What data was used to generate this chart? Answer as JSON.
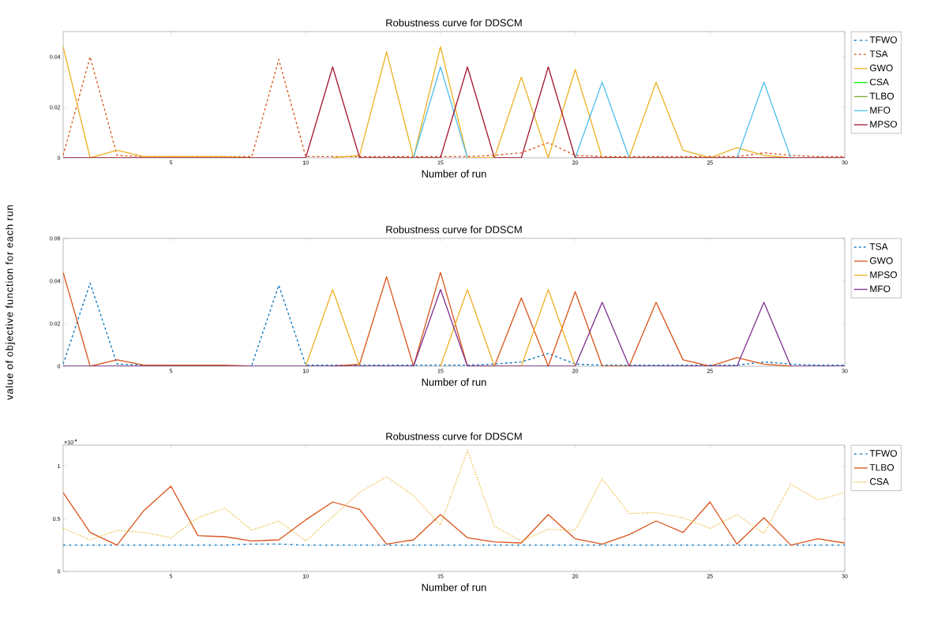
{
  "chart_data": [
    {
      "type": "line",
      "title": "Robustness curve for DDSCM",
      "xlabel": "Number of run",
      "x": [
        1,
        2,
        3,
        4,
        5,
        6,
        7,
        8,
        9,
        10,
        11,
        12,
        13,
        14,
        15,
        16,
        17,
        18,
        19,
        20,
        21,
        22,
        23,
        24,
        25,
        26,
        27,
        28,
        29,
        30
      ],
      "xlim": [
        1,
        30
      ],
      "xticks": [
        5,
        10,
        15,
        20,
        25,
        30
      ],
      "ylim": [
        0,
        0.05
      ],
      "yticks": [
        0,
        0.02,
        0.04
      ],
      "grid": false,
      "legend": "right",
      "marker": "none",
      "series": [
        {
          "name": "TFWO",
          "color": "#0072bd",
          "line_style": "dashdot",
          "values": [
            null,
            null,
            null,
            null,
            null,
            null,
            null,
            null,
            null,
            null,
            null,
            null,
            null,
            null,
            null,
            null,
            null,
            null,
            null,
            null,
            null,
            null,
            null,
            null,
            null,
            null,
            null,
            null,
            null,
            null
          ]
        },
        {
          "name": "TSA",
          "color": "#d95319",
          "line_style": "dashed",
          "values": [
            0.001,
            0.04,
            0.001,
            0.0005,
            0.0005,
            0.0005,
            0.0005,
            0.0005,
            0.039,
            0.0005,
            0.0005,
            0.0005,
            0.0005,
            0.0005,
            0.0005,
            0.0005,
            0.001,
            0.002,
            0.006,
            0.001,
            0.0005,
            0.0005,
            0.0005,
            0.0005,
            0.0005,
            0.0005,
            0.002,
            0.001,
            0.0005,
            0.0005
          ]
        },
        {
          "name": "GWO",
          "color": "#edb120",
          "line_style": "solid",
          "values": [
            0.044,
            0,
            0.003,
            0.0005,
            0.0005,
            0.0005,
            0.0005,
            0,
            null,
            null,
            0,
            0.001,
            0.042,
            0,
            0.044,
            0,
            0,
            0.032,
            0,
            0.035,
            0,
            0,
            0.03,
            0.003,
            0,
            0.004,
            0.001,
            0,
            null,
            null
          ]
        },
        {
          "name": "CSA",
          "color": "#00ff00",
          "line_style": "solid",
          "values": [
            null,
            null,
            null,
            null,
            null,
            null,
            null,
            null,
            null,
            null,
            null,
            null,
            null,
            null,
            null,
            null,
            null,
            null,
            null,
            null,
            null,
            null,
            null,
            null,
            null,
            null,
            null,
            null,
            null,
            null
          ]
        },
        {
          "name": "TLBO",
          "color": "#77ac30",
          "line_style": "solid",
          "values": [
            null,
            null,
            null,
            null,
            null,
            null,
            null,
            null,
            null,
            null,
            null,
            null,
            null,
            null,
            null,
            null,
            null,
            null,
            null,
            null,
            null,
            null,
            null,
            null,
            null,
            null,
            null,
            null,
            null,
            null
          ]
        },
        {
          "name": "MFO",
          "color": "#4dbeee",
          "line_style": "solid",
          "values": [
            null,
            null,
            null,
            null,
            null,
            null,
            null,
            null,
            null,
            null,
            null,
            null,
            null,
            0,
            0.036,
            0,
            null,
            null,
            null,
            0,
            0.03,
            0,
            null,
            null,
            null,
            0,
            0.03,
            0,
            null,
            null
          ]
        },
        {
          "name": "MPSO",
          "color": "#a2142f",
          "line_style": "solid",
          "values": [
            0,
            0,
            0,
            0,
            0,
            0,
            0,
            0,
            0,
            0,
            0.036,
            0,
            0,
            0,
            0,
            0.036,
            0,
            0,
            0.036,
            0,
            0,
            0,
            0,
            0,
            0,
            0,
            0,
            0,
            0,
            0
          ]
        }
      ]
    },
    {
      "type": "line",
      "title": "Robustness curve for DDSCM",
      "xlabel": "Number of run",
      "ylabel": "value of objective function for each run",
      "x": [
        1,
        2,
        3,
        4,
        5,
        6,
        7,
        8,
        9,
        10,
        11,
        12,
        13,
        14,
        15,
        16,
        17,
        18,
        19,
        20,
        21,
        22,
        23,
        24,
        25,
        26,
        27,
        28,
        29,
        30
      ],
      "xlim": [
        1,
        30
      ],
      "xticks": [
        5,
        10,
        15,
        20,
        25,
        30
      ],
      "ylim": [
        0,
        0.06
      ],
      "yticks": [
        0,
        0.02,
        0.04,
        0.06
      ],
      "grid": false,
      "legend": "right",
      "marker": "none",
      "series": [
        {
          "name": "TSA",
          "color": "#0072bd",
          "line_style": "dashed",
          "values": [
            0.001,
            0.039,
            0.001,
            0.0005,
            0.0005,
            null,
            null,
            0.0005,
            0.038,
            0.0005,
            0.0005,
            0.0005,
            0.0005,
            0.0005,
            0.0005,
            0.0005,
            0.001,
            0.002,
            0.006,
            0.001,
            0.0005,
            0.0005,
            0.0005,
            0.0005,
            0.0005,
            0.0005,
            0.002,
            0.001,
            0.0005,
            0.0005
          ]
        },
        {
          "name": "GWO",
          "color": "#d95319",
          "line_style": "solid",
          "values": [
            0.044,
            0,
            0.003,
            0.0005,
            0.0005,
            0.0005,
            0.0005,
            0,
            null,
            null,
            0,
            0.001,
            0.042,
            0,
            0.044,
            0,
            0,
            0.032,
            0,
            0.035,
            0,
            0,
            0.03,
            0.003,
            0,
            0.004,
            0.001,
            0,
            null,
            null
          ]
        },
        {
          "name": "MPSO",
          "color": "#edb120",
          "line_style": "solid",
          "values": [
            null,
            null,
            null,
            null,
            null,
            null,
            null,
            null,
            null,
            0,
            0.036,
            0,
            null,
            null,
            0,
            0.036,
            0,
            0,
            0.036,
            0,
            null,
            null,
            null,
            null,
            null,
            null,
            null,
            null,
            null,
            null
          ]
        },
        {
          "name": "MFO",
          "color": "#7e2f8e",
          "line_style": "solid",
          "values": [
            0,
            0,
            0,
            0,
            0,
            0,
            0,
            0,
            0,
            0,
            0,
            0,
            0,
            0,
            0.036,
            0,
            0,
            0,
            0,
            0,
            0.03,
            0,
            0,
            0,
            0,
            0,
            0.03,
            0,
            0,
            0
          ]
        }
      ]
    },
    {
      "type": "line",
      "title": "Robustness curve for DDSCM",
      "xlabel": "Number of run",
      "annotations": [
        "×10$^{-4}$"
      ],
      "x": [
        1,
        2,
        3,
        4,
        5,
        6,
        7,
        8,
        9,
        10,
        11,
        12,
        13,
        14,
        15,
        16,
        17,
        18,
        19,
        20,
        21,
        22,
        23,
        24,
        25,
        26,
        27,
        28,
        29,
        30
      ],
      "xlim": [
        1,
        30
      ],
      "xticks": [
        5,
        10,
        15,
        20,
        25,
        30
      ],
      "ylim": [
        0,
        1.2
      ],
      "yticks": [
        0,
        0.5,
        1
      ],
      "grid": false,
      "legend": "right",
      "marker": "none",
      "series": [
        {
          "name": "TFWO",
          "color": "#0072bd",
          "line_style": "dashdot",
          "values": [
            0.25,
            0.25,
            0.25,
            0.25,
            0.25,
            0.25,
            0.25,
            0.26,
            0.26,
            0.25,
            0.25,
            0.25,
            0.25,
            0.25,
            0.25,
            0.25,
            0.25,
            0.25,
            0.25,
            0.25,
            0.25,
            0.25,
            0.25,
            0.25,
            0.25,
            0.25,
            0.25,
            0.25,
            0.25,
            0.25
          ]
        },
        {
          "name": "TLBO",
          "color": "#d95319",
          "line_style": "solid",
          "values": [
            0.75,
            0.37,
            0.25,
            0.58,
            0.81,
            0.34,
            0.33,
            0.29,
            0.3,
            0.49,
            0.66,
            0.59,
            0.26,
            0.3,
            0.54,
            0.32,
            0.28,
            0.27,
            0.54,
            0.31,
            0.26,
            0.35,
            0.48,
            0.37,
            0.66,
            0.26,
            0.51,
            0.25,
            0.31,
            0.27
          ]
        },
        {
          "name": "CSA",
          "color": "#edb120",
          "line_style": "dotted",
          "values": [
            0.41,
            0.3,
            0.39,
            0.37,
            0.32,
            0.51,
            0.6,
            0.39,
            0.48,
            0.29,
            0.52,
            0.75,
            0.9,
            0.72,
            0.44,
            1.15,
            0.43,
            0.29,
            0.4,
            0.39,
            0.88,
            0.55,
            0.56,
            0.51,
            0.41,
            0.54,
            0.36,
            0.83,
            0.68,
            0.75
          ]
        }
      ]
    }
  ]
}
